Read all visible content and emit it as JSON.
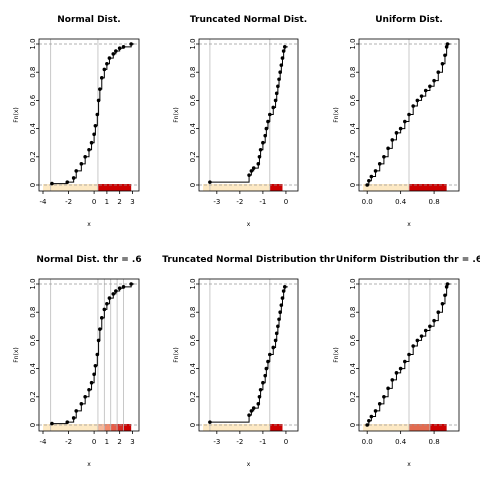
{
  "chart_data": [
    {
      "type": "scatter",
      "title": "Normal Dist.",
      "xlabel": "x",
      "ylabel": "Fn(x)",
      "xlim": [
        -4,
        3.2
      ],
      "ylim": [
        0,
        1
      ],
      "xticks": [
        -4,
        -2,
        0,
        1,
        2,
        3
      ],
      "yticks": [
        0,
        0.2,
        0.4,
        0.6,
        0.8,
        1.0
      ],
      "ytick_labels": [
        "0",
        "0.2",
        "0.4",
        "0.6",
        "0.8",
        "1.0"
      ],
      "vlines": [
        -3.4,
        0.3
      ],
      "threshold_bands": [
        {
          "from": -4,
          "to": 0.3,
          "color": "#fde9c4"
        },
        {
          "from": 0.3,
          "to": 2.9,
          "color": "#cc0000"
        }
      ],
      "points": [
        [
          -3.3,
          0.01
        ],
        [
          -2.1,
          0.02
        ],
        [
          -1.6,
          0.05
        ],
        [
          -1.4,
          0.1
        ],
        [
          -1.0,
          0.15
        ],
        [
          -0.7,
          0.2
        ],
        [
          -0.4,
          0.25
        ],
        [
          -0.2,
          0.3
        ],
        [
          0.0,
          0.36
        ],
        [
          0.1,
          0.42
        ],
        [
          0.25,
          0.5
        ],
        [
          0.35,
          0.6
        ],
        [
          0.45,
          0.68
        ],
        [
          0.6,
          0.76
        ],
        [
          0.8,
          0.82
        ],
        [
          1.0,
          0.86
        ],
        [
          1.2,
          0.9
        ],
        [
          1.5,
          0.93
        ],
        [
          1.7,
          0.95
        ],
        [
          2.0,
          0.97
        ],
        [
          2.3,
          0.98
        ],
        [
          2.9,
          1.0
        ]
      ]
    },
    {
      "type": "scatter",
      "title": "Truncated Normal Dist.",
      "xlabel": "x",
      "ylabel": "Fn(x)",
      "xlim": [
        -3.6,
        0.35
      ],
      "ylim": [
        0,
        1
      ],
      "xticks": [
        -3,
        -2,
        -1,
        0
      ],
      "yticks": [
        0,
        0.2,
        0.4,
        0.6,
        0.8,
        1.0
      ],
      "ytick_labels": [
        "0",
        "0.2",
        "0.4",
        "0.6",
        "0.8",
        "1.0"
      ],
      "vlines": [
        -3.3,
        -0.7
      ],
      "threshold_bands": [
        {
          "from": -3.6,
          "to": -0.7,
          "color": "#fde9c4"
        },
        {
          "from": -0.7,
          "to": -0.15,
          "color": "#cc0000"
        }
      ],
      "points": [
        [
          -3.3,
          0.02
        ],
        [
          -1.6,
          0.07
        ],
        [
          -1.5,
          0.1
        ],
        [
          -1.4,
          0.12
        ],
        [
          -1.2,
          0.15
        ],
        [
          -1.15,
          0.2
        ],
        [
          -1.1,
          0.25
        ],
        [
          -1.0,
          0.3
        ],
        [
          -0.9,
          0.35
        ],
        [
          -0.85,
          0.4
        ],
        [
          -0.78,
          0.45
        ],
        [
          -0.7,
          0.5
        ],
        [
          -0.55,
          0.55
        ],
        [
          -0.45,
          0.6
        ],
        [
          -0.4,
          0.65
        ],
        [
          -0.35,
          0.7
        ],
        [
          -0.3,
          0.75
        ],
        [
          -0.25,
          0.8
        ],
        [
          -0.2,
          0.85
        ],
        [
          -0.15,
          0.9
        ],
        [
          -0.1,
          0.95
        ],
        [
          -0.05,
          0.98
        ]
      ]
    },
    {
      "type": "scatter",
      "title": "Uniform Dist.",
      "xlabel": "x",
      "ylabel": "Fn(x)",
      "xlim": [
        -0.05,
        1.05
      ],
      "ylim": [
        0,
        1
      ],
      "xticks": [
        0.0,
        0.4,
        0.8
      ],
      "xtick_labels": [
        "0.0",
        "0.4",
        "0.8"
      ],
      "yticks": [
        0,
        0.2,
        0.4,
        0.6,
        0.8,
        1.0
      ],
      "ytick_labels": [
        "0",
        "0.2",
        "0.4",
        "0.6",
        "0.8",
        "1.0"
      ],
      "vlines": [
        0.5
      ],
      "threshold_bands": [
        {
          "from": -0.05,
          "to": 0.5,
          "color": "#fde9c4"
        },
        {
          "from": 0.5,
          "to": 0.95,
          "color": "#cc0000"
        }
      ],
      "points": [
        [
          0.0,
          0.0
        ],
        [
          0.02,
          0.03
        ],
        [
          0.05,
          0.06
        ],
        [
          0.1,
          0.1
        ],
        [
          0.15,
          0.15
        ],
        [
          0.2,
          0.2
        ],
        [
          0.25,
          0.26
        ],
        [
          0.3,
          0.32
        ],
        [
          0.35,
          0.37
        ],
        [
          0.4,
          0.4
        ],
        [
          0.45,
          0.45
        ],
        [
          0.5,
          0.5
        ],
        [
          0.55,
          0.56
        ],
        [
          0.6,
          0.6
        ],
        [
          0.65,
          0.63
        ],
        [
          0.7,
          0.67
        ],
        [
          0.75,
          0.7
        ],
        [
          0.8,
          0.74
        ],
        [
          0.85,
          0.8
        ],
        [
          0.9,
          0.86
        ],
        [
          0.93,
          0.92
        ],
        [
          0.95,
          0.98
        ],
        [
          0.96,
          1.0
        ]
      ]
    },
    {
      "type": "scatter",
      "title": "Normal Dist. thr = .6",
      "xlabel": "x",
      "ylabel": "Fn(x)",
      "xlim": [
        -4,
        3.2
      ],
      "ylim": [
        0,
        1
      ],
      "xticks": [
        -4,
        -2,
        0,
        1,
        2,
        3
      ],
      "yticks": [
        0,
        0.2,
        0.4,
        0.6,
        0.8,
        1.0
      ],
      "ytick_labels": [
        "0",
        "0.2",
        "0.4",
        "0.6",
        "0.8",
        "1.0"
      ],
      "vlines": [
        -3.4,
        0.3,
        0.8,
        1.3,
        1.8,
        2.3
      ],
      "threshold_bands": [
        {
          "from": -4,
          "to": 0.3,
          "color": "#fde9c4"
        },
        {
          "from": 0.3,
          "to": 0.8,
          "color": "#f7b799"
        },
        {
          "from": 0.8,
          "to": 1.3,
          "color": "#f28a6c"
        },
        {
          "from": 1.3,
          "to": 1.8,
          "color": "#e75c47"
        },
        {
          "from": 1.8,
          "to": 2.3,
          "color": "#d52b24"
        },
        {
          "from": 2.3,
          "to": 2.9,
          "color": "#cc0000"
        }
      ],
      "points": [
        [
          -3.3,
          0.01
        ],
        [
          -2.1,
          0.02
        ],
        [
          -1.6,
          0.05
        ],
        [
          -1.4,
          0.1
        ],
        [
          -1.0,
          0.15
        ],
        [
          -0.7,
          0.2
        ],
        [
          -0.4,
          0.25
        ],
        [
          -0.2,
          0.3
        ],
        [
          0.0,
          0.36
        ],
        [
          0.1,
          0.42
        ],
        [
          0.25,
          0.5
        ],
        [
          0.35,
          0.6
        ],
        [
          0.45,
          0.68
        ],
        [
          0.6,
          0.76
        ],
        [
          0.8,
          0.82
        ],
        [
          1.0,
          0.86
        ],
        [
          1.2,
          0.9
        ],
        [
          1.5,
          0.93
        ],
        [
          1.7,
          0.95
        ],
        [
          2.0,
          0.97
        ],
        [
          2.3,
          0.98
        ],
        [
          2.9,
          1.0
        ]
      ]
    },
    {
      "type": "scatter",
      "title": "Truncated Normal Distribution thr",
      "xlabel": "x",
      "ylabel": "Fn(x)",
      "xlim": [
        -3.6,
        0.35
      ],
      "ylim": [
        0,
        1
      ],
      "xticks": [
        -3,
        -2,
        -1,
        0
      ],
      "yticks": [
        0,
        0.2,
        0.4,
        0.6,
        0.8,
        1.0
      ],
      "ytick_labels": [
        "0",
        "0.2",
        "0.4",
        "0.6",
        "0.8",
        "1.0"
      ],
      "vlines": [
        -3.3,
        -0.7
      ],
      "threshold_bands": [
        {
          "from": -3.6,
          "to": -0.7,
          "color": "#fde9c4"
        },
        {
          "from": -0.7,
          "to": -0.15,
          "color": "#cc0000"
        }
      ],
      "points": [
        [
          -3.3,
          0.02
        ],
        [
          -1.6,
          0.07
        ],
        [
          -1.5,
          0.1
        ],
        [
          -1.4,
          0.12
        ],
        [
          -1.2,
          0.15
        ],
        [
          -1.15,
          0.2
        ],
        [
          -1.1,
          0.25
        ],
        [
          -1.0,
          0.3
        ],
        [
          -0.9,
          0.35
        ],
        [
          -0.85,
          0.4
        ],
        [
          -0.78,
          0.45
        ],
        [
          -0.7,
          0.5
        ],
        [
          -0.55,
          0.55
        ],
        [
          -0.45,
          0.6
        ],
        [
          -0.4,
          0.65
        ],
        [
          -0.35,
          0.7
        ],
        [
          -0.3,
          0.75
        ],
        [
          -0.25,
          0.8
        ],
        [
          -0.2,
          0.85
        ],
        [
          -0.15,
          0.9
        ],
        [
          -0.1,
          0.95
        ],
        [
          -0.05,
          0.98
        ]
      ]
    },
    {
      "type": "scatter",
      "title": "Uniform Distribution thr = .6",
      "xlabel": "x",
      "ylabel": "Fn(x)",
      "xlim": [
        -0.05,
        1.05
      ],
      "ylim": [
        0,
        1
      ],
      "xticks": [
        0.0,
        0.4,
        0.8
      ],
      "xtick_labels": [
        "0.0",
        "0.4",
        "0.8"
      ],
      "yticks": [
        0,
        0.2,
        0.4,
        0.6,
        0.8,
        1.0
      ],
      "ytick_labels": [
        "0",
        "0.2",
        "0.4",
        "0.6",
        "0.8",
        "1.0"
      ],
      "vlines": [
        0.5,
        0.75
      ],
      "threshold_bands": [
        {
          "from": -0.05,
          "to": 0.5,
          "color": "#fde9c4"
        },
        {
          "from": 0.5,
          "to": 0.75,
          "color": "#e36b50"
        },
        {
          "from": 0.75,
          "to": 0.95,
          "color": "#cc0000"
        }
      ],
      "points": [
        [
          0.0,
          0.0
        ],
        [
          0.02,
          0.03
        ],
        [
          0.05,
          0.06
        ],
        [
          0.1,
          0.1
        ],
        [
          0.15,
          0.15
        ],
        [
          0.2,
          0.2
        ],
        [
          0.25,
          0.26
        ],
        [
          0.3,
          0.32
        ],
        [
          0.35,
          0.37
        ],
        [
          0.4,
          0.4
        ],
        [
          0.45,
          0.45
        ],
        [
          0.5,
          0.5
        ],
        [
          0.55,
          0.56
        ],
        [
          0.6,
          0.6
        ],
        [
          0.65,
          0.63
        ],
        [
          0.7,
          0.67
        ],
        [
          0.75,
          0.7
        ],
        [
          0.8,
          0.74
        ],
        [
          0.85,
          0.8
        ],
        [
          0.9,
          0.86
        ],
        [
          0.93,
          0.92
        ],
        [
          0.95,
          0.98
        ],
        [
          0.96,
          1.0
        ]
      ]
    }
  ]
}
